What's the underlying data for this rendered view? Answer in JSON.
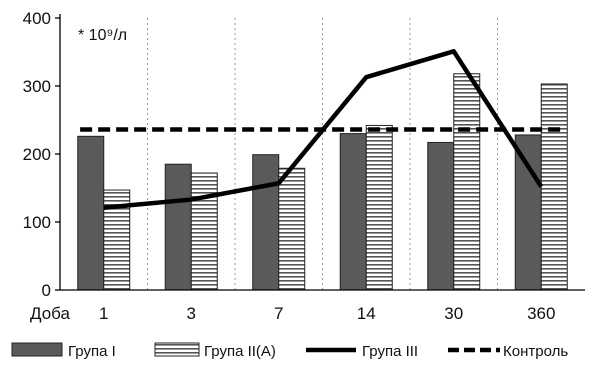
{
  "chart_data": {
    "type": "bar",
    "unit_label": "* 10⁹/л",
    "x_axis_prefix": "Доба",
    "categories": [
      "1",
      "3",
      "7",
      "14",
      "30",
      "360"
    ],
    "ylim": [
      0,
      400
    ],
    "yticks": [
      "0",
      "100",
      "200",
      "300",
      "400"
    ],
    "grid": "vertical dotted separators between categories",
    "legend_position": "bottom",
    "colors": {
      "bar1": "#5a5a5a",
      "bar2_stripes": "#555555",
      "line": "#000000",
      "control": "#000000"
    },
    "series": [
      {
        "name": "Група I",
        "kind": "bar",
        "values": [
          226,
          185,
          199,
          230,
          217,
          228
        ]
      },
      {
        "name": "Група II(A)",
        "kind": "bar-striped",
        "values": [
          147,
          172,
          179,
          242,
          318,
          303
        ]
      },
      {
        "name": "Група III",
        "kind": "line",
        "values": [
          121,
          133,
          157,
          313,
          351,
          152
        ]
      },
      {
        "name": "Контроль",
        "kind": "dashed-line",
        "values": [
          236,
          236,
          236,
          236,
          236,
          236
        ]
      }
    ]
  }
}
